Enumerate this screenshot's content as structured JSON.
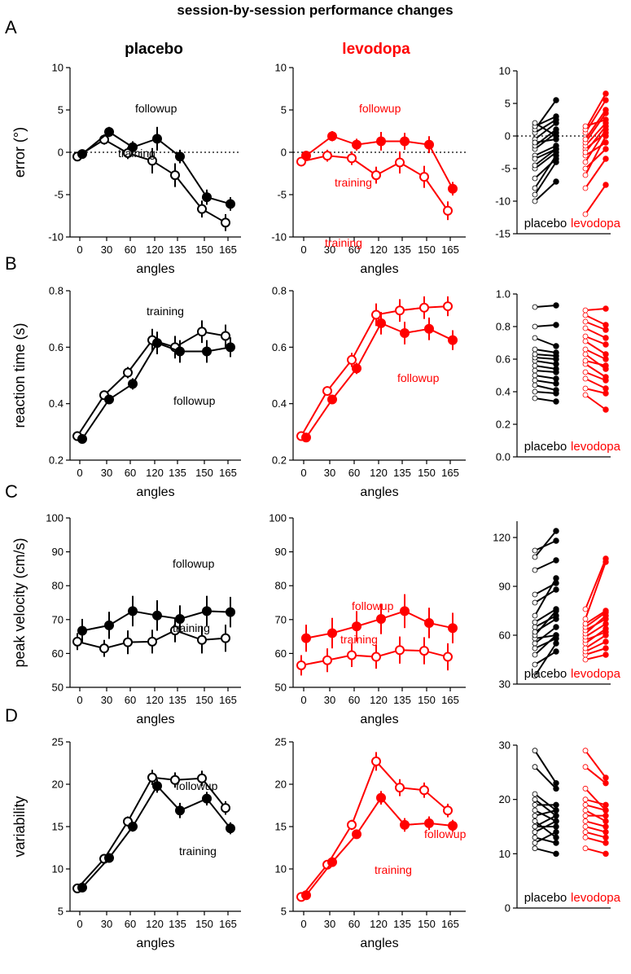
{
  "figure": {
    "title": "session-by-session performance changes",
    "col_placebo": "placebo",
    "col_levodopa": "levodopa",
    "colors": {
      "placebo": "#000000",
      "levodopa": "#ff0000"
    }
  },
  "chart_data": [
    {
      "type": "line",
      "panel": "A",
      "row_label": "A",
      "condition": "placebo",
      "ylabel": "error  (°)",
      "xlabel": "angles",
      "categories": [
        "0",
        "30",
        "60",
        "120",
        "135",
        "150",
        "165"
      ],
      "ylim": [
        -10,
        10
      ],
      "yticks": [
        "-10",
        "-5",
        "0",
        "5",
        "10"
      ],
      "zero_line": true,
      "series": [
        {
          "name": "training",
          "label": "training",
          "fill": "open",
          "values": [
            -0.5,
            1.5,
            -0.1,
            -1.0,
            -2.7,
            -6.7,
            -8.3
          ],
          "errors": [
            0.4,
            0.6,
            0.7,
            1.5,
            1.4,
            1.0,
            1.0
          ]
        },
        {
          "name": "followup",
          "label": "followup",
          "fill": "filled",
          "values": [
            -0.2,
            2.4,
            0.6,
            1.6,
            -0.5,
            -5.3,
            -6.1
          ],
          "errors": [
            0.3,
            0.6,
            0.7,
            1.4,
            0.8,
            0.9,
            0.8
          ]
        }
      ]
    },
    {
      "type": "line",
      "panel": "A",
      "row_label": "",
      "condition": "levodopa",
      "ylabel": "",
      "xlabel": "angles",
      "categories": [
        "0",
        "30",
        "60",
        "120",
        "135",
        "150",
        "165"
      ],
      "ylim": [
        -10,
        10
      ],
      "yticks": [
        "-10",
        "-5",
        "0",
        "5",
        "10"
      ],
      "zero_line": true,
      "series": [
        {
          "name": "training",
          "label": "training",
          "fill": "open",
          "values": [
            -1.1,
            -0.4,
            -0.7,
            -2.7,
            -1.2,
            -2.9,
            -6.9
          ],
          "errors": [
            0.5,
            0.7,
            0.8,
            1.0,
            1.3,
            1.3,
            1.1
          ]
        },
        {
          "name": "followup",
          "label": "followup",
          "fill": "filled",
          "values": [
            -0.4,
            1.9,
            0.9,
            1.3,
            1.3,
            0.9,
            -4.3
          ],
          "errors": [
            0.4,
            0.6,
            0.7,
            1.1,
            1.0,
            1.0,
            0.8
          ]
        }
      ]
    },
    {
      "type": "paired",
      "panel": "A",
      "condition": "subjects",
      "ylim": [
        -15,
        10
      ],
      "yticks": [
        "-15",
        "-10",
        "-5",
        "0",
        "5",
        "10"
      ],
      "zero_line": true,
      "groups": [
        {
          "name": "placebo",
          "label": "placebo",
          "training": [
            -10.0,
            -9.0,
            -8.0,
            -6.5,
            -5.0,
            -4.5,
            -3.0,
            -2.0,
            -1.5,
            -0.5,
            0.5,
            1.0,
            1.5,
            2.0,
            -3.5,
            -1.0
          ],
          "followup": [
            -7.0,
            -4.0,
            -3.0,
            -3.5,
            -2.5,
            -2.0,
            -1.5,
            0.5,
            1.0,
            2.0,
            2.5,
            5.5,
            3.0,
            0.0,
            -2.0,
            -0.5
          ]
        },
        {
          "name": "levodopa",
          "label": "levodopa",
          "training": [
            -12.0,
            -8.0,
            -6.0,
            -5.0,
            -4.0,
            -3.0,
            -2.0,
            -1.5,
            -1.0,
            -0.5,
            0.5,
            1.0,
            1.5,
            -2.5
          ],
          "followup": [
            -7.5,
            -3.5,
            0.0,
            -2.0,
            1.0,
            -1.0,
            0.5,
            2.0,
            3.5,
            4.0,
            5.5,
            6.5,
            2.5,
            1.5
          ]
        }
      ]
    },
    {
      "type": "line",
      "panel": "B",
      "row_label": "B",
      "condition": "placebo",
      "ylabel": "reaction time (s)",
      "xlabel": "angles",
      "categories": [
        "0",
        "30",
        "60",
        "120",
        "135",
        "150",
        "165"
      ],
      "ylim": [
        0.2,
        0.8
      ],
      "yticks": [
        "0.2",
        "0.4",
        "0.6",
        "0.8"
      ],
      "zero_line": false,
      "series": [
        {
          "name": "training",
          "label": "training",
          "fill": "open",
          "values": [
            0.285,
            0.43,
            0.51,
            0.625,
            0.6,
            0.655,
            0.64
          ],
          "errors": [
            0.008,
            0.015,
            0.02,
            0.04,
            0.04,
            0.04,
            0.04
          ]
        },
        {
          "name": "followup",
          "label": "followup",
          "fill": "filled",
          "values": [
            0.275,
            0.415,
            0.47,
            0.615,
            0.585,
            0.585,
            0.6
          ],
          "errors": [
            0.008,
            0.015,
            0.02,
            0.04,
            0.04,
            0.04,
            0.035
          ]
        }
      ]
    },
    {
      "type": "line",
      "panel": "B",
      "row_label": "",
      "condition": "levodopa",
      "ylabel": "",
      "xlabel": "angles",
      "categories": [
        "0",
        "30",
        "60",
        "120",
        "135",
        "150",
        "165"
      ],
      "ylim": [
        0.2,
        0.8
      ],
      "yticks": [
        "0.2",
        "0.4",
        "0.6",
        "0.8"
      ],
      "zero_line": false,
      "series": [
        {
          "name": "training",
          "label": "training",
          "fill": "open",
          "values": [
            0.285,
            0.445,
            0.555,
            0.715,
            0.73,
            0.74,
            0.745
          ],
          "errors": [
            0.008,
            0.015,
            0.025,
            0.04,
            0.04,
            0.04,
            0.035
          ]
        },
        {
          "name": "followup",
          "label": "followup",
          "fill": "filled",
          "values": [
            0.28,
            0.415,
            0.525,
            0.685,
            0.65,
            0.665,
            0.625
          ],
          "errors": [
            0.008,
            0.015,
            0.02,
            0.04,
            0.04,
            0.04,
            0.035
          ]
        }
      ]
    },
    {
      "type": "paired",
      "panel": "B",
      "condition": "subjects",
      "ylim": [
        0,
        1.0
      ],
      "yticks": [
        "0.0",
        "0.2",
        "0.4",
        "0.6",
        "0.8",
        "1.0"
      ],
      "zero_line": false,
      "groups": [
        {
          "name": "placebo",
          "label": "placebo",
          "training": [
            0.36,
            0.4,
            0.44,
            0.47,
            0.5,
            0.53,
            0.56,
            0.59,
            0.61,
            0.63,
            0.66,
            0.73,
            0.8,
            0.92
          ],
          "followup": [
            0.34,
            0.39,
            0.41,
            0.45,
            0.48,
            0.52,
            0.54,
            0.57,
            0.6,
            0.62,
            0.64,
            0.68,
            0.81,
            0.93
          ]
        },
        {
          "name": "levodopa",
          "label": "levodopa",
          "training": [
            0.38,
            0.42,
            0.48,
            0.52,
            0.57,
            0.59,
            0.63,
            0.66,
            0.71,
            0.74,
            0.79,
            0.83,
            0.87,
            0.9
          ],
          "followup": [
            0.29,
            0.39,
            0.42,
            0.47,
            0.49,
            0.56,
            0.54,
            0.6,
            0.63,
            0.69,
            0.73,
            0.78,
            0.81,
            0.91
          ]
        }
      ]
    },
    {
      "type": "line",
      "panel": "C",
      "row_label": "C",
      "condition": "placebo",
      "ylabel": "peak velocity (cm/s)",
      "xlabel": "angles",
      "categories": [
        "0",
        "30",
        "60",
        "120",
        "135",
        "150",
        "165"
      ],
      "ylim": [
        50,
        100
      ],
      "yticks": [
        "50",
        "60",
        "70",
        "80",
        "90",
        "100"
      ],
      "zero_line": false,
      "series": [
        {
          "name": "training",
          "label": "training",
          "fill": "open",
          "values": [
            63.5,
            61.5,
            63.3,
            63.5,
            66.8,
            64.0,
            64.5
          ],
          "errors": [
            2.5,
            2.5,
            3.5,
            3.5,
            3.5,
            4.0,
            4.0
          ]
        },
        {
          "name": "followup",
          "label": "followup",
          "fill": "filled",
          "values": [
            66.7,
            68.3,
            72.5,
            71.2,
            70.2,
            72.5,
            72.2
          ],
          "errors": [
            3.5,
            4.0,
            4.5,
            4.5,
            4.0,
            4.5,
            4.5
          ]
        }
      ]
    },
    {
      "type": "line",
      "panel": "C",
      "row_label": "",
      "condition": "levodopa",
      "ylabel": "",
      "xlabel": "angles",
      "categories": [
        "0",
        "30",
        "60",
        "120",
        "135",
        "150",
        "165"
      ],
      "ylim": [
        50,
        100
      ],
      "yticks": [
        "50",
        "60",
        "70",
        "80",
        "90",
        "100"
      ],
      "zero_line": false,
      "series": [
        {
          "name": "training",
          "label": "training",
          "fill": "open",
          "values": [
            56.5,
            58.0,
            59.5,
            59.0,
            61.0,
            60.8,
            59.0
          ],
          "errors": [
            3.0,
            3.5,
            3.5,
            3.5,
            4.0,
            4.0,
            4.0
          ]
        },
        {
          "name": "followup",
          "label": "followup",
          "fill": "filled",
          "values": [
            64.5,
            66.0,
            68.0,
            70.2,
            72.5,
            69.0,
            67.5
          ],
          "errors": [
            4.0,
            4.5,
            4.5,
            4.5,
            5.0,
            4.5,
            4.5
          ]
        }
      ]
    },
    {
      "type": "paired",
      "panel": "C",
      "condition": "subjects",
      "ylim": [
        30,
        130
      ],
      "yticks": [
        "30",
        "60",
        "90",
        "120"
      ],
      "zero_line": false,
      "groups": [
        {
          "name": "placebo",
          "label": "placebo",
          "training": [
            35,
            42,
            48,
            52,
            55,
            58,
            60,
            62,
            65,
            68,
            72,
            80,
            85,
            100,
            108,
            112
          ],
          "followup": [
            55,
            50,
            60,
            58,
            65,
            60,
            75,
            70,
            72,
            76,
            95,
            88,
            92,
            106,
            124,
            118
          ]
        },
        {
          "name": "levodopa",
          "label": "levodopa",
          "training": [
            45,
            48,
            50,
            52,
            55,
            57,
            59,
            61,
            63,
            65,
            67,
            70,
            76
          ],
          "followup": [
            48,
            52,
            56,
            60,
            64,
            62,
            67,
            72,
            70,
            74,
            75,
            105,
            107
          ]
        }
      ]
    },
    {
      "type": "line",
      "panel": "D",
      "row_label": "D",
      "condition": "placebo",
      "ylabel": "variability",
      "xlabel": "angles",
      "categories": [
        "0",
        "30",
        "60",
        "120",
        "135",
        "150",
        "165"
      ],
      "ylim": [
        5,
        25
      ],
      "yticks": [
        "5",
        "10",
        "15",
        "20",
        "25"
      ],
      "zero_line": false,
      "series": [
        {
          "name": "training",
          "label": "training",
          "fill": "open",
          "values": [
            7.7,
            11.2,
            15.6,
            20.8,
            20.5,
            20.7,
            17.2
          ],
          "errors": [
            0.2,
            0.3,
            0.6,
            0.9,
            0.9,
            0.9,
            0.8
          ]
        },
        {
          "name": "followup",
          "label": "followup",
          "fill": "filled",
          "values": [
            7.8,
            11.3,
            15.0,
            19.8,
            16.9,
            18.3,
            14.8
          ],
          "errors": [
            0.2,
            0.3,
            0.6,
            0.8,
            0.9,
            0.8,
            0.7
          ]
        }
      ]
    },
    {
      "type": "line",
      "panel": "D",
      "row_label": "",
      "condition": "levodopa",
      "ylabel": "",
      "xlabel": "angles",
      "categories": [
        "0",
        "30",
        "60",
        "120",
        "135",
        "150",
        "165"
      ],
      "ylim": [
        5,
        25
      ],
      "yticks": [
        "5",
        "10",
        "15",
        "20",
        "25"
      ],
      "zero_line": false,
      "series": [
        {
          "name": "training",
          "label": "training",
          "fill": "open",
          "values": [
            6.7,
            10.5,
            15.2,
            22.7,
            19.6,
            19.3,
            16.9
          ],
          "errors": [
            0.2,
            0.3,
            0.6,
            1.1,
            1.0,
            0.9,
            0.8
          ]
        },
        {
          "name": "followup",
          "label": "followup",
          "fill": "filled",
          "values": [
            6.9,
            10.8,
            14.1,
            18.4,
            15.2,
            15.4,
            15.1
          ],
          "errors": [
            0.2,
            0.3,
            0.5,
            0.8,
            0.8,
            0.8,
            0.7
          ]
        }
      ]
    },
    {
      "type": "paired",
      "panel": "D",
      "condition": "subjects",
      "ylim": [
        0,
        30
      ],
      "yticks": [
        "0",
        "10",
        "20",
        "30"
      ],
      "zero_line": false,
      "groups": [
        {
          "name": "placebo",
          "label": "placebo",
          "training": [
            11,
            12,
            13,
            14,
            15,
            16,
            17,
            18,
            19,
            20,
            21,
            26,
            29,
            15
          ],
          "followup": [
            10,
            14,
            12,
            16,
            17,
            13,
            18,
            16,
            19,
            17,
            18,
            22,
            23,
            15
          ]
        },
        {
          "name": "levodopa",
          "label": "levodopa",
          "training": [
            11,
            13,
            14,
            15,
            16,
            17,
            18,
            19,
            20,
            22,
            26,
            29
          ],
          "followup": [
            10,
            12,
            13,
            14,
            15,
            17,
            16,
            18,
            19,
            18,
            23,
            24
          ]
        }
      ]
    }
  ]
}
